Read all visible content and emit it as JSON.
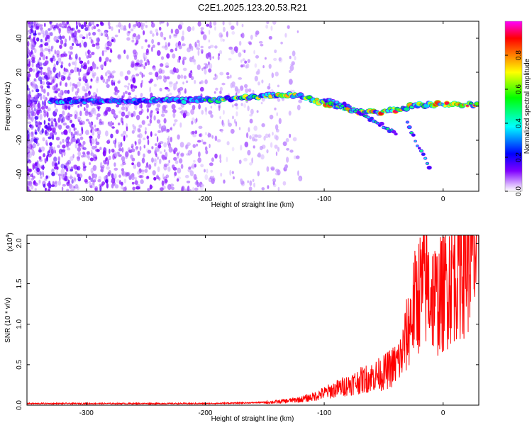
{
  "figure": {
    "title": "C2E1.2025.123.20.53.R21"
  },
  "chart_data": [
    {
      "type": "heatmap",
      "xlabel": "Height of straight line (km)",
      "ylabel": "Frequency (Hz)",
      "xlim": [
        -350,
        30
      ],
      "ylim": [
        -50,
        50
      ],
      "xticks": [
        -300,
        -200,
        -100,
        0
      ],
      "xtick_labels": [
        "-300",
        "-200",
        "-100",
        "0"
      ],
      "yticks": [
        -40,
        -20,
        0,
        20,
        40
      ],
      "ytick_labels": [
        "-40",
        "-20",
        "0",
        "20",
        "40"
      ],
      "colorbar": {
        "label": "Normalized spectral amplitude",
        "range": [
          0,
          1
        ],
        "ticks": [
          0.0,
          0.2,
          0.4,
          0.6,
          0.8
        ],
        "tick_labels": [
          "0.0",
          "0.2",
          "0.4",
          "0.6",
          "0.8"
        ],
        "colors": [
          "#ffffff",
          "#8000ff",
          "#0000ff",
          "#00ffff",
          "#00ff00",
          "#ffff00",
          "#ff8000",
          "#ff0000",
          "#ff00ff"
        ]
      },
      "ridges": [
        {
          "x": [
            -330,
            -300,
            -250,
            -200,
            -180,
            -160,
            -140,
            -120,
            -100,
            -80,
            -60,
            -40,
            -20,
            0,
            30
          ],
          "y": [
            3,
            3,
            3,
            4,
            4,
            5,
            7,
            6,
            2,
            -2,
            -4,
            -2,
            1,
            1,
            1
          ]
        },
        {
          "x": [
            -100,
            -80,
            -60,
            -45,
            -38
          ],
          "y": [
            4,
            0,
            -8,
            -14,
            -17
          ]
        },
        {
          "x": [
            -30,
            -20,
            -10
          ],
          "y": [
            -10,
            -25,
            -38
          ]
        }
      ],
      "grid": false
    },
    {
      "type": "line",
      "xlabel": "Height of straight line (km)",
      "ylabel": "SNR (10 * v/v)",
      "y_multiplier_label": "(x10",
      "y_multiplier_exp": "4",
      "y_multiplier_close": ")",
      "xlim": [
        -350,
        30
      ],
      "ylim": [
        0,
        2.1
      ],
      "xticks": [
        -300,
        -200,
        -100,
        0
      ],
      "xtick_labels": [
        "-300",
        "-200",
        "-100",
        "0"
      ],
      "yticks": [
        0,
        0.5,
        1.0,
        1.5,
        2.0
      ],
      "ytick_labels": [
        "0.0",
        "0.5",
        "1.0",
        "1.5",
        "2.0"
      ],
      "series": [
        {
          "color": "#ff0000",
          "x": [
            -350,
            -300,
            -250,
            -200,
            -160,
            -140,
            -120,
            -110,
            -100,
            -90,
            -80,
            -70,
            -60,
            -50,
            -40,
            -35,
            -30,
            -25,
            -20,
            -15,
            -10,
            -5,
            0,
            10,
            20,
            30
          ],
          "y": [
            0.02,
            0.02,
            0.02,
            0.02,
            0.03,
            0.04,
            0.07,
            0.1,
            0.15,
            0.2,
            0.25,
            0.3,
            0.35,
            0.4,
            0.5,
            0.6,
            0.9,
            1.2,
            1.4,
            1.5,
            1.4,
            1.3,
            1.4,
            1.7,
            1.85,
            1.9
          ]
        }
      ],
      "grid": false
    }
  ]
}
